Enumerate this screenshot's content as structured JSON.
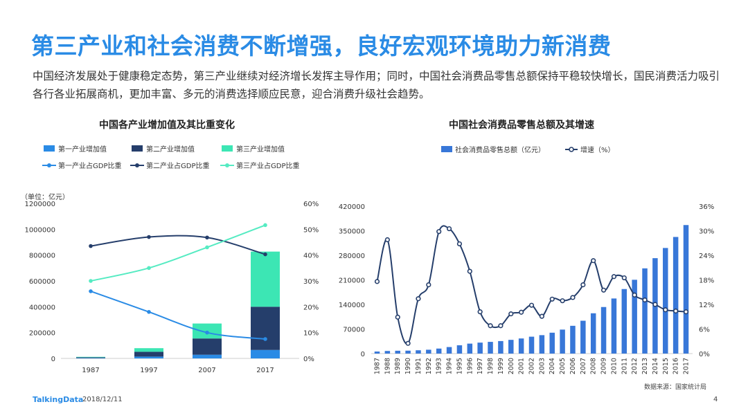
{
  "title": "第三产业和社会消费不断增强，良好宏观环境助力新消费",
  "intro": "中国经济发展处于健康稳定态势，第三产业继续对经济增长发挥主导作用；同时，中国社会消费品零售总额保持平稳较快增长，国民消费活力吸引各行各业拓展商机，更加丰富、多元的消费选择顺应民意，迎合消费升级社会趋势。",
  "footer": {
    "logo": "TalkingData",
    "date": "2018/12/11",
    "page": "4"
  },
  "source": "数据来源：国家统计局",
  "colors": {
    "primary": "#2a8be5",
    "dark": "#253e6b",
    "mint": "#3ce6b4",
    "mint_line": "#55ebc2",
    "bar_blue": "#3877d8"
  },
  "chart_data": [
    {
      "type": "bar",
      "title": "中国各产业增加值及其比重变化",
      "unit_label": "（单位：亿元）",
      "categories": [
        "1987",
        "1997",
        "2007",
        "2017"
      ],
      "ylim": [
        0,
        1200000
      ],
      "y_ticks": [
        "0",
        "200000",
        "400000",
        "600000",
        "800000",
        "1000000",
        "1200000"
      ],
      "y2lim": [
        0,
        60
      ],
      "y2_ticks": [
        "0%",
        "10%",
        "20%",
        "30%",
        "40%",
        "50%",
        "60%"
      ],
      "series": [
        {
          "name": "第一产业增加值",
          "kind": "bar",
          "color": "#2a8be5",
          "values": [
            3200,
            14000,
            28600,
            65500
          ]
        },
        {
          "name": "第二产业增加值",
          "kind": "bar",
          "color": "#253e6b",
          "values": [
            5300,
            37500,
            125800,
            334600
          ]
        },
        {
          "name": "第三产业增加值",
          "kind": "bar",
          "color": "#3ce6b4",
          "values": [
            3600,
            27800,
            115800,
            427000
          ]
        },
        {
          "name": "第一产业占GDP比重",
          "kind": "line",
          "color": "#2a8be5",
          "values": [
            26,
            18,
            10,
            7.5
          ]
        },
        {
          "name": "第二产业占GDP比重",
          "kind": "line",
          "color": "#253e6b",
          "values": [
            43.5,
            47,
            46.8,
            40.3
          ]
        },
        {
          "name": "第三产业占GDP比重",
          "kind": "line",
          "color": "#55ebc2",
          "values": [
            30,
            35,
            43,
            51.6
          ]
        }
      ],
      "grid": false,
      "legend": "top"
    },
    {
      "type": "bar",
      "title": "中国社会消费品零售总额及其增速",
      "categories": [
        "1987",
        "1988",
        "1989",
        "1990",
        "1991",
        "1992",
        "1993",
        "1994",
        "1995",
        "1996",
        "1997",
        "1998",
        "1999",
        "2000",
        "2001",
        "2002",
        "2003",
        "2004",
        "2005",
        "2006",
        "2007",
        "2008",
        "2009",
        "2010",
        "2011",
        "2012",
        "2013",
        "2014",
        "2015",
        "2016",
        "2017"
      ],
      "ylim": [
        0,
        420000
      ],
      "y_ticks": [
        "0",
        "70000",
        "140000",
        "210000",
        "280000",
        "350000",
        "420000"
      ],
      "y2lim": [
        0,
        36
      ],
      "y2_ticks": [
        "0%",
        "6%",
        "12%",
        "18%",
        "24%",
        "30%",
        "36%"
      ],
      "series": [
        {
          "name": "社会消费品零售总额（亿元）",
          "kind": "bar",
          "color": "#3877d8",
          "values": [
            5820,
            7440,
            8101,
            8300,
            9416,
            10994,
            14270,
            18623,
            23614,
            28360,
            31253,
            33378,
            35648,
            39106,
            43055,
            48136,
            52516,
            59501,
            68353,
            79145,
            93572,
            114830,
            132678,
            156998,
            183919,
            210307,
            242843,
            271896,
            300931,
            332316,
            366262
          ]
        },
        {
          "name": "增速（%）",
          "kind": "line",
          "color": "#253e6b",
          "values": [
            17.6,
            27.8,
            8.9,
            2.5,
            13.4,
            16.8,
            29.8,
            30.5,
            26.8,
            20.1,
            10.2,
            6.8,
            6.8,
            9.7,
            10.1,
            11.8,
            9.1,
            13.3,
            12.9,
            13.7,
            16.8,
            22.7,
            15.5,
            18.8,
            18.5,
            14.3,
            13.1,
            12.0,
            10.7,
            10.4,
            10.2
          ]
        }
      ],
      "grid": false,
      "legend": "top"
    }
  ]
}
